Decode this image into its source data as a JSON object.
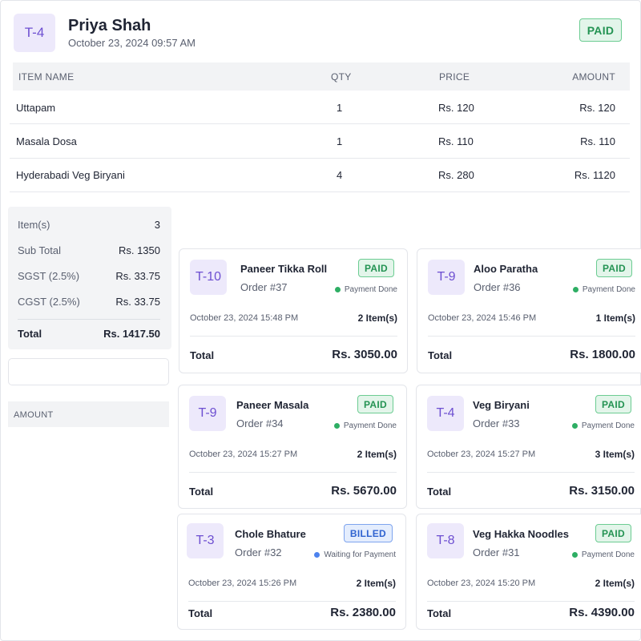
{
  "header": {
    "table": "T-4",
    "customer": "Priya Shah",
    "datetime": "October 23, 2024 09:57 AM",
    "status": "PAID"
  },
  "columns": {
    "item": "ITEM NAME",
    "qty": "QTY",
    "price": "PRICE",
    "amount": "AMOUNT"
  },
  "items": [
    {
      "name": "Uttapam",
      "qty": "1",
      "price": "Rs. 120",
      "amount": "Rs. 120"
    },
    {
      "name": "Masala Dosa",
      "qty": "1",
      "price": "Rs. 110",
      "amount": "Rs. 110"
    },
    {
      "name": "Hyderabadi Veg Biryani",
      "qty": "4",
      "price": "Rs. 280",
      "amount": "Rs. 1120"
    }
  ],
  "summary": {
    "items_label": "Item(s)",
    "items_value": "3",
    "subtotal_label": "Sub Total",
    "subtotal_value": "Rs. 1350",
    "sgst_label": "SGST (2.5%)",
    "sgst_value": "Rs. 33.75",
    "cgst_label": "CGST (2.5%)",
    "cgst_value": "Rs. 33.75",
    "total_label": "Total",
    "total_value": "Rs. 1417.50"
  },
  "amount_label": "AMOUNT",
  "orders": [
    {
      "table": "T-10",
      "name": "Paneer Tikka Roll",
      "order": "Order #37",
      "status": "PAID",
      "state": "Payment Done",
      "datetime": "October 23, 2024 15:48 PM",
      "items": "2 Item(s)",
      "total_label": "Total",
      "total": "Rs. 3050.00"
    },
    {
      "table": "T-9",
      "name": "Aloo Paratha",
      "order": "Order #36",
      "status": "PAID",
      "state": "Payment Done",
      "datetime": "October 23, 2024 15:46 PM",
      "items": "1 Item(s)",
      "total_label": "Total",
      "total": "Rs. 1800.00"
    },
    {
      "table": "T-9",
      "name": "Paneer Masala",
      "order": "Order #34",
      "status": "PAID",
      "state": "Payment Done",
      "datetime": "October 23, 2024 15:27 PM",
      "items": "2 Item(s)",
      "total_label": "Total",
      "total": "Rs. 5670.00"
    },
    {
      "table": "T-4",
      "name": "Veg Biryani",
      "order": "Order #33",
      "status": "PAID",
      "state": "Payment Done",
      "datetime": "October 23, 2024 15:27 PM",
      "items": "3 Item(s)",
      "total_label": "Total",
      "total": "Rs. 3150.00"
    },
    {
      "table": "T-3",
      "name": "Chole Bhature",
      "order": "Order #32",
      "status": "BILLED",
      "state": "Waiting for Payment",
      "datetime": "October 23, 2024 15:26 PM",
      "items": "2 Item(s)",
      "total_label": "Total",
      "total": "Rs. 2380.00"
    },
    {
      "table": "T-8",
      "name": "Veg Hakka Noodles",
      "order": "Order #31",
      "status": "PAID",
      "state": "Payment Done",
      "datetime": "October 23, 2024 15:20 PM",
      "items": "2 Item(s)",
      "total_label": "Total",
      "total": "Rs. 4390.00"
    }
  ],
  "colors": {
    "accent": "#6d4fd1",
    "paid": "#249353",
    "billed": "#2f63d0"
  }
}
